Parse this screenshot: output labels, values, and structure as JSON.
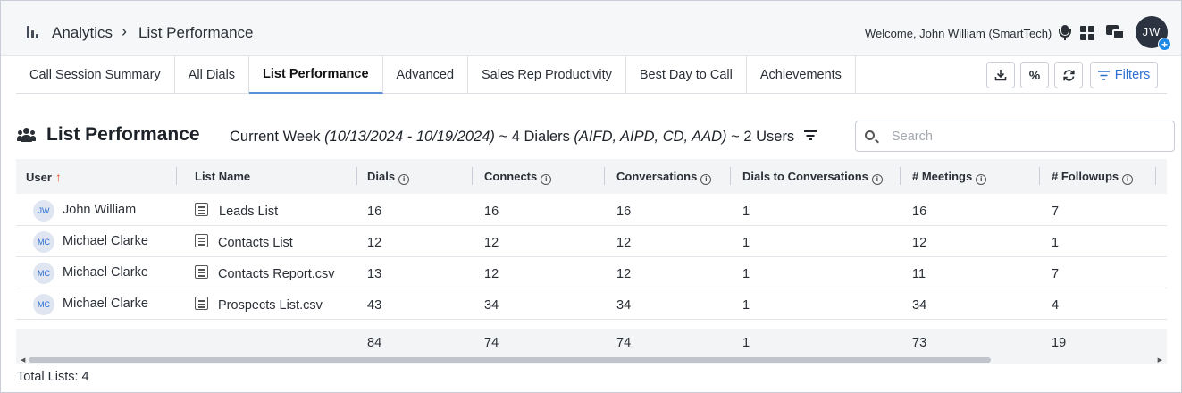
{
  "header": {
    "breadcrumb_root": "Analytics",
    "breadcrumb_sep": "›",
    "breadcrumb_current": "List Performance",
    "welcome": "Welcome, John William (SmartTech)",
    "avatar_initials": "JW",
    "avatar_badge": "+"
  },
  "tabs": [
    {
      "label": "Call Session Summary"
    },
    {
      "label": "All Dials"
    },
    {
      "label": "List Performance"
    },
    {
      "label": "Advanced"
    },
    {
      "label": "Sales Rep Productivity"
    },
    {
      "label": "Best Day to Call"
    },
    {
      "label": "Achievements"
    }
  ],
  "toolbar": {
    "download_icon": "download-icon",
    "percent_label": "%",
    "refresh_icon": "refresh-icon",
    "filters_label": "Filters"
  },
  "section": {
    "title": "List Performance",
    "range_prefix": "Current Week ",
    "range_dates": "(10/13/2024 - 10/19/2024)",
    "range_dialers": " ~ 4 Dialers ",
    "range_dialer_list": "(AIFD, AIPD, CD, AAD)",
    "range_users": " ~ 2 Users"
  },
  "search": {
    "placeholder": "Search",
    "value": ""
  },
  "table": {
    "columns": [
      {
        "label": "User"
      },
      {
        "label": "List Name"
      },
      {
        "label": "Dials"
      },
      {
        "label": "Connects"
      },
      {
        "label": "Conversations"
      },
      {
        "label": "Dials to Conversations"
      },
      {
        "label": "# Meetings"
      },
      {
        "label": "# Followups"
      }
    ],
    "rows": [
      {
        "initials": "JW",
        "user": "John William",
        "list": "Leads List",
        "dials": "16",
        "connects": "16",
        "conversations": "16",
        "d2c": "1",
        "meetings": "16",
        "followups": "7"
      },
      {
        "initials": "MC",
        "user": "Michael Clarke",
        "list": "Contacts List",
        "dials": "12",
        "connects": "12",
        "conversations": "12",
        "d2c": "1",
        "meetings": "12",
        "followups": "1"
      },
      {
        "initials": "MC",
        "user": "Michael Clarke",
        "list": "Contacts Report.csv",
        "dials": "13",
        "connects": "12",
        "conversations": "12",
        "d2c": "1",
        "meetings": "11",
        "followups": "7"
      },
      {
        "initials": "MC",
        "user": "Michael Clarke",
        "list": "Prospects List.csv",
        "dials": "43",
        "connects": "34",
        "conversations": "34",
        "d2c": "1",
        "meetings": "34",
        "followups": "4"
      }
    ],
    "totals": {
      "dials": "84",
      "connects": "74",
      "conversations": "74",
      "d2c": "1",
      "meetings": "73",
      "followups": "19"
    }
  },
  "footer": {
    "total_lists": "Total Lists: 4"
  }
}
